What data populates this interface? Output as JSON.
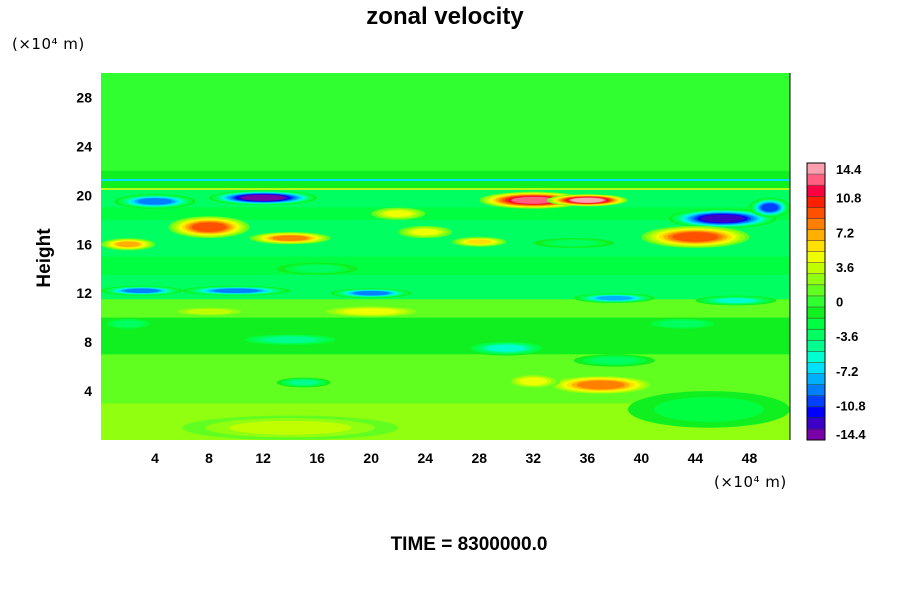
{
  "chart_data": {
    "type": "heatmap",
    "title": "zonal velocity",
    "ylabel": "Height",
    "x_unit": "(×10⁴ m)",
    "y_unit": "(×10⁴ m)",
    "time_label": "TIME = 8300000.0",
    "xlim": [
      0,
      51
    ],
    "ylim": [
      0,
      30
    ],
    "x_ticks": [
      4,
      8,
      12,
      16,
      20,
      24,
      28,
      32,
      36,
      40,
      44,
      48
    ],
    "y_ticks": [
      4,
      8,
      12,
      16,
      20,
      24,
      28
    ],
    "colorbar": {
      "min": -14.4,
      "max": 14.4,
      "step": 1.2,
      "tick_values": [
        14.4,
        10.8,
        7.2,
        3.6,
        0,
        -3.6,
        -7.2,
        -10.8,
        -14.4
      ],
      "tick_labels": [
        "14.4",
        "10.8",
        "7.2",
        "3.6",
        "0",
        "-3.6",
        "-7.2",
        "-10.8",
        "-14.4"
      ],
      "colors_low_to_high": [
        "#7a00a8",
        "#3c00c8",
        "#0000ff",
        "#0040ff",
        "#0080ff",
        "#00b0ff",
        "#00e0ff",
        "#00ffd0",
        "#00ff90",
        "#00ff60",
        "#00ff40",
        "#10f020",
        "#30ff30",
        "#60ff20",
        "#90ff10",
        "#c0ff00",
        "#f0ff00",
        "#ffe000",
        "#ffb000",
        "#ff8000",
        "#ff5000",
        "#ff2000",
        "#ff0040",
        "#ff6080",
        "#ffa0b0"
      ]
    },
    "features": [
      {
        "x": 12,
        "y": 19.8,
        "rx": 4,
        "ry": 0.6,
        "value": -14
      },
      {
        "x": 4,
        "y": 19.5,
        "rx": 3,
        "ry": 0.6,
        "value": -9
      },
      {
        "x": 32,
        "y": 19.6,
        "rx": 4,
        "ry": 0.7,
        "value": 13
      },
      {
        "x": 36,
        "y": 19.6,
        "rx": 3,
        "ry": 0.5,
        "value": 14
      },
      {
        "x": 46,
        "y": 18.1,
        "rx": 4,
        "ry": 0.8,
        "value": -13
      },
      {
        "x": 49.5,
        "y": 19,
        "rx": 1.5,
        "ry": 0.8,
        "value": -11
      },
      {
        "x": 8,
        "y": 17.4,
        "rx": 3,
        "ry": 0.9,
        "value": 10
      },
      {
        "x": 44,
        "y": 16.6,
        "rx": 4,
        "ry": 0.9,
        "value": 10
      },
      {
        "x": 14,
        "y": 16.5,
        "rx": 3,
        "ry": 0.5,
        "value": 8
      },
      {
        "x": 2,
        "y": 16,
        "rx": 2,
        "ry": 0.5,
        "value": 7
      },
      {
        "x": 24,
        "y": 17,
        "rx": 2,
        "ry": 0.5,
        "value": 5
      },
      {
        "x": 28,
        "y": 16.2,
        "rx": 2,
        "ry": 0.4,
        "value": 6
      },
      {
        "x": 3,
        "y": 12.2,
        "rx": 3,
        "ry": 0.4,
        "value": -10
      },
      {
        "x": 10,
        "y": 12.2,
        "rx": 4,
        "ry": 0.4,
        "value": -9
      },
      {
        "x": 20,
        "y": 12,
        "rx": 3,
        "ry": 0.4,
        "value": -9
      },
      {
        "x": 38,
        "y": 11.6,
        "rx": 3,
        "ry": 0.4,
        "value": -8
      },
      {
        "x": 47,
        "y": 11.4,
        "rx": 3,
        "ry": 0.4,
        "value": -6
      },
      {
        "x": 16,
        "y": 14,
        "rx": 3,
        "ry": 0.5,
        "value": -4
      },
      {
        "x": 37,
        "y": 4.5,
        "rx": 4,
        "ry": 0.8,
        "value": 8
      },
      {
        "x": 32,
        "y": 4.8,
        "rx": 2,
        "ry": 0.6,
        "value": 5
      },
      {
        "x": 15,
        "y": 4.7,
        "rx": 2,
        "ry": 0.4,
        "value": -5
      },
      {
        "x": 30,
        "y": 7.5,
        "rx": 3,
        "ry": 0.6,
        "value": -6
      },
      {
        "x": 38,
        "y": 6.5,
        "rx": 3,
        "ry": 0.5,
        "value": -4
      },
      {
        "x": 14,
        "y": 8.2,
        "rx": 4,
        "ry": 0.5,
        "value": -5
      },
      {
        "x": 2,
        "y": 9.5,
        "rx": 2,
        "ry": 0.5,
        "value": -4
      },
      {
        "x": 20,
        "y": 10.5,
        "rx": 4,
        "ry": 0.5,
        "value": 5
      },
      {
        "x": 8,
        "y": 10.5,
        "rx": 3,
        "ry": 0.4,
        "value": 4
      },
      {
        "x": 43,
        "y": 9.5,
        "rx": 3,
        "ry": 0.5,
        "value": -4
      },
      {
        "x": 14,
        "y": 1,
        "rx": 8,
        "ry": 1,
        "value": 3
      },
      {
        "x": 45,
        "y": 2.5,
        "rx": 6,
        "ry": 1.5,
        "value": -2
      },
      {
        "x": 22,
        "y": 18.5,
        "rx": 2,
        "ry": 0.5,
        "value": 5
      },
      {
        "x": 35,
        "y": 16.1,
        "rx": 3,
        "ry": 0.4,
        "value": -4
      }
    ]
  }
}
